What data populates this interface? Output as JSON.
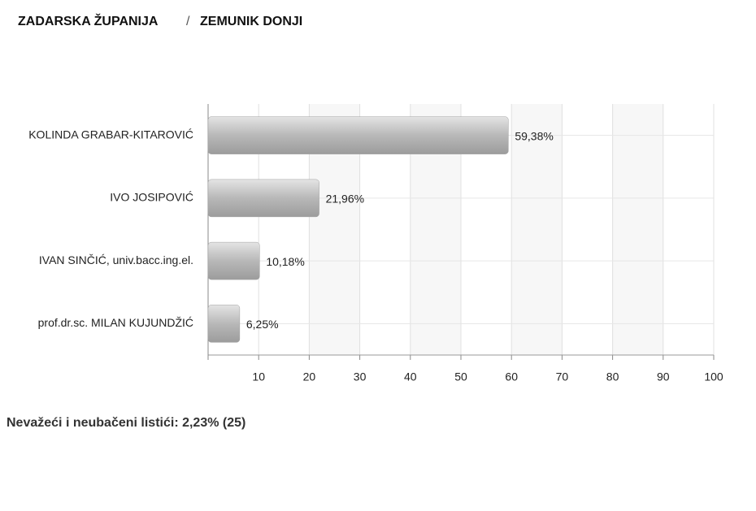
{
  "header": {
    "region": "ZADARSKA ŽUPANIJA",
    "separator": "/",
    "place": "ZEMUNIK DONJI"
  },
  "chart_data": {
    "type": "hbar",
    "categories": [
      "KOLINDA GRABAR-KITAROVIĆ",
      "IVO JOSIPOVIĆ",
      "IVAN SINČIĆ, univ.bacc.ing.el.",
      "prof.dr.sc. MILAN KUJUNDŽIĆ"
    ],
    "values": [
      59.38,
      21.96,
      10.18,
      6.25
    ],
    "value_labels": [
      "59,38%",
      "21,96%",
      "10,18%",
      "6,25%"
    ],
    "color": "#b8b8b8",
    "xlim": [
      0,
      100
    ],
    "xticks": [
      10,
      20,
      30,
      40,
      50,
      60,
      70,
      80,
      90,
      100
    ],
    "grid": true
  },
  "footer": "Nevažeći i neubačeni listići: 2,23% (25)"
}
